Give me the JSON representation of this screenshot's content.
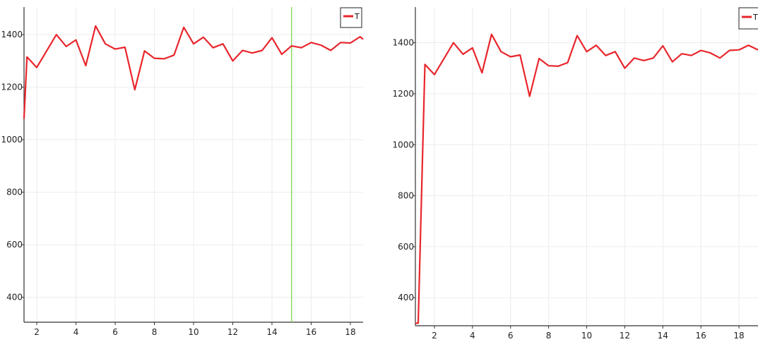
{
  "chart_data": [
    {
      "type": "line",
      "title": "",
      "xlabel": "",
      "ylabel": "",
      "xlim": [
        1.35,
        18.65
      ],
      "ylim": [
        305,
        1505
      ],
      "xticks": [
        2,
        4,
        6,
        8,
        10,
        12,
        14,
        16,
        18
      ],
      "yticks": [
        400,
        600,
        800,
        1000,
        1200,
        1400
      ],
      "grid": true,
      "legend": {
        "placement": "top-right",
        "entries": [
          "T"
        ]
      },
      "vertical_marker": {
        "x": 15,
        "color": "#7cd64b"
      },
      "series": [
        {
          "name": "T",
          "color": "#e8262c",
          "x": [
            1.35,
            1.5,
            2.0,
            3.0,
            3.5,
            4.0,
            4.5,
            5.0,
            5.5,
            6.0,
            6.5,
            7.0,
            7.5,
            8.0,
            8.5,
            9.0,
            9.5,
            10.0,
            10.5,
            11.0,
            11.5,
            12.0,
            12.5,
            13.0,
            13.5,
            14.0,
            14.5,
            15.0,
            15.5,
            16.0,
            16.5,
            17.0,
            17.5,
            18.0,
            18.5,
            18.65
          ],
          "values": [
            1080,
            1315,
            1275,
            1400,
            1355,
            1380,
            1282,
            1433,
            1365,
            1345,
            1352,
            1190,
            1338,
            1310,
            1308,
            1322,
            1428,
            1365,
            1390,
            1350,
            1365,
            1300,
            1340,
            1330,
            1340,
            1388,
            1325,
            1357,
            1350,
            1370,
            1360,
            1340,
            1370,
            1368,
            1392,
            1382
          ]
        }
      ]
    },
    {
      "type": "line",
      "title": "",
      "xlabel": "",
      "ylabel": "",
      "xlim": [
        1.0,
        19.0
      ],
      "ylim": [
        290,
        1540
      ],
      "xticks": [
        2,
        4,
        6,
        8,
        10,
        12,
        14,
        16,
        18
      ],
      "yticks": [
        400,
        600,
        800,
        1000,
        1200,
        1400
      ],
      "grid": true,
      "legend": {
        "placement": "top-right",
        "entries": [
          "T"
        ]
      },
      "series": [
        {
          "name": "T",
          "color": "#e8262c",
          "x": [
            1.0,
            1.15,
            1.5,
            2.0,
            3.0,
            3.5,
            4.0,
            4.5,
            5.0,
            5.5,
            6.0,
            6.5,
            7.0,
            7.5,
            8.0,
            8.5,
            9.0,
            9.5,
            10.0,
            10.5,
            11.0,
            11.5,
            12.0,
            12.5,
            13.0,
            13.5,
            14.0,
            14.5,
            15.0,
            15.5,
            16.0,
            16.5,
            17.0,
            17.5,
            18.0,
            18.5,
            19.0
          ],
          "values": [
            300,
            300,
            1315,
            1275,
            1400,
            1355,
            1380,
            1282,
            1433,
            1365,
            1345,
            1352,
            1190,
            1338,
            1310,
            1308,
            1322,
            1428,
            1365,
            1390,
            1350,
            1365,
            1300,
            1340,
            1330,
            1340,
            1388,
            1325,
            1357,
            1350,
            1370,
            1360,
            1340,
            1370,
            1372,
            1390,
            1372
          ]
        }
      ]
    }
  ]
}
